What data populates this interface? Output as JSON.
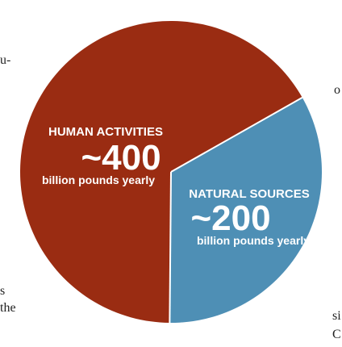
{
  "chart_data": {
    "type": "pie",
    "slices": [
      {
        "name": "HUMAN ACTIVITIES",
        "value": 400,
        "value_label": "~400",
        "unit": "billion pounds yearly",
        "color": "#9a2c12"
      },
      {
        "name": "NATURAL SOURCES",
        "value": 200,
        "value_label": "~200",
        "unit": "billion pounds yearly",
        "color": "#4e8fb5"
      }
    ],
    "separator_color": "#ffffff"
  },
  "clipped_text": {
    "left_1": "u-",
    "left_2": "s",
    "left_3": "the",
    "right_1": "o",
    "right_2": "si",
    "right_3": "C"
  }
}
